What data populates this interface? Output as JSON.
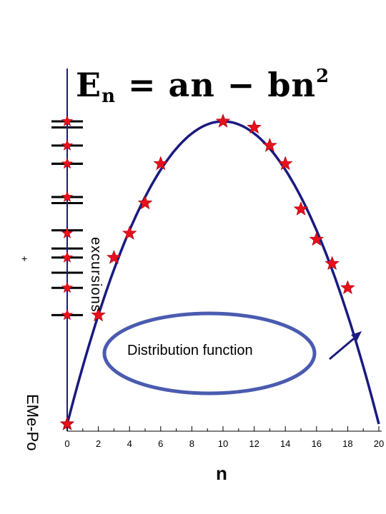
{
  "formula": {
    "lhs": "E",
    "lhs_sub": "n",
    "rhs": " = an − bn",
    "rhs_sup": "2"
  },
  "annotation": "Distribution function",
  "rotated_text_upper": "excursions",
  "rotated_text_lower": "EMe-Po",
  "plus_sign": "+",
  "colors": {
    "curve": "#1a1a80",
    "stars": "#e8101a",
    "ellipse": "#4a5bb0",
    "axis": "#1a1a80",
    "levels": "#000000"
  },
  "chart_data": {
    "type": "scatter",
    "xlabel": "n",
    "ylabel": "",
    "xlim": [
      0,
      20
    ],
    "x_ticks": [
      "0",
      "2",
      "4",
      "6",
      "8",
      "10",
      "12",
      "14",
      "16",
      "18",
      "20"
    ],
    "y_ticks": [],
    "curve": {
      "a": 20,
      "b": 1,
      "points_x": [
        0,
        1,
        2,
        3,
        4,
        5,
        6,
        7,
        8,
        9,
        10,
        11,
        12,
        13,
        14,
        15,
        16,
        17,
        18,
        19,
        20
      ],
      "points_y": [
        0,
        19,
        36,
        51,
        64,
        75,
        84,
        91,
        96,
        99,
        100,
        99,
        96,
        91,
        84,
        75,
        64,
        51,
        36,
        19,
        0
      ]
    },
    "series": [
      {
        "x": [
          0,
          2,
          3,
          4,
          5,
          6,
          10,
          12,
          13,
          14,
          15,
          16,
          17,
          18
        ],
        "y": [
          0,
          36,
          55,
          63,
          73,
          86,
          100,
          98,
          92,
          86,
          71,
          61,
          53,
          45
        ]
      }
    ],
    "energy_levels": [
      100,
      98,
      92,
      86,
      86,
      75,
      73,
      64,
      58,
      55,
      50,
      45,
      36
    ],
    "axis_stars": [
      100,
      92,
      86,
      75,
      63,
      55,
      45,
      36,
      0
    ]
  }
}
